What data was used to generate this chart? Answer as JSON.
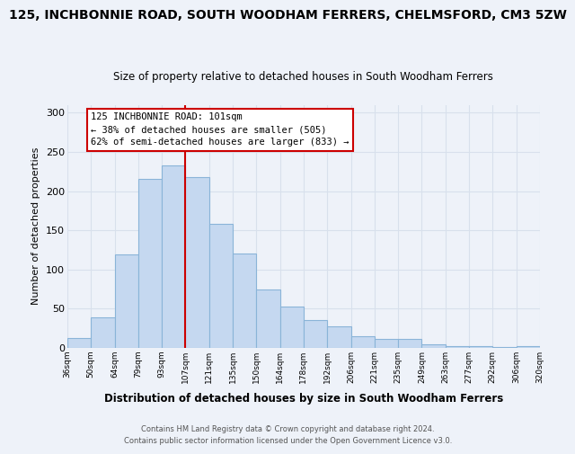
{
  "title": "125, INCHBONNIE ROAD, SOUTH WOODHAM FERRERS, CHELMSFORD, CM3 5ZW",
  "subtitle": "Size of property relative to detached houses in South Woodham Ferrers",
  "xlabel": "Distribution of detached houses by size in South Woodham Ferrers",
  "ylabel": "Number of detached properties",
  "bin_labels": [
    "36sqm",
    "50sqm",
    "64sqm",
    "79sqm",
    "93sqm",
    "107sqm",
    "121sqm",
    "135sqm",
    "150sqm",
    "164sqm",
    "178sqm",
    "192sqm",
    "206sqm",
    "221sqm",
    "235sqm",
    "249sqm",
    "263sqm",
    "277sqm",
    "292sqm",
    "306sqm",
    "320sqm"
  ],
  "bar_heights": [
    12,
    39,
    119,
    216,
    233,
    218,
    158,
    120,
    74,
    53,
    35,
    27,
    15,
    11,
    11,
    4,
    2,
    2,
    1,
    2
  ],
  "bar_color": "#c5d8f0",
  "bar_edge_color": "#8ab4d8",
  "reference_line_color": "#cc0000",
  "annotation_text_line1": "125 INCHBONNIE ROAD: 101sqm",
  "annotation_text_line2": "← 38% of detached houses are smaller (505)",
  "annotation_text_line3": "62% of semi-detached houses are larger (833) →",
  "ylim": [
    0,
    310
  ],
  "yticks": [
    0,
    50,
    100,
    150,
    200,
    250,
    300
  ],
  "footer_line1": "Contains HM Land Registry data © Crown copyright and database right 2024.",
  "footer_line2": "Contains public sector information licensed under the Open Government Licence v3.0.",
  "bg_color": "#eef2f9",
  "grid_color": "#d8e0ec",
  "title_fontsize": 10,
  "subtitle_fontsize": 8.5,
  "ref_bar_index": 5
}
